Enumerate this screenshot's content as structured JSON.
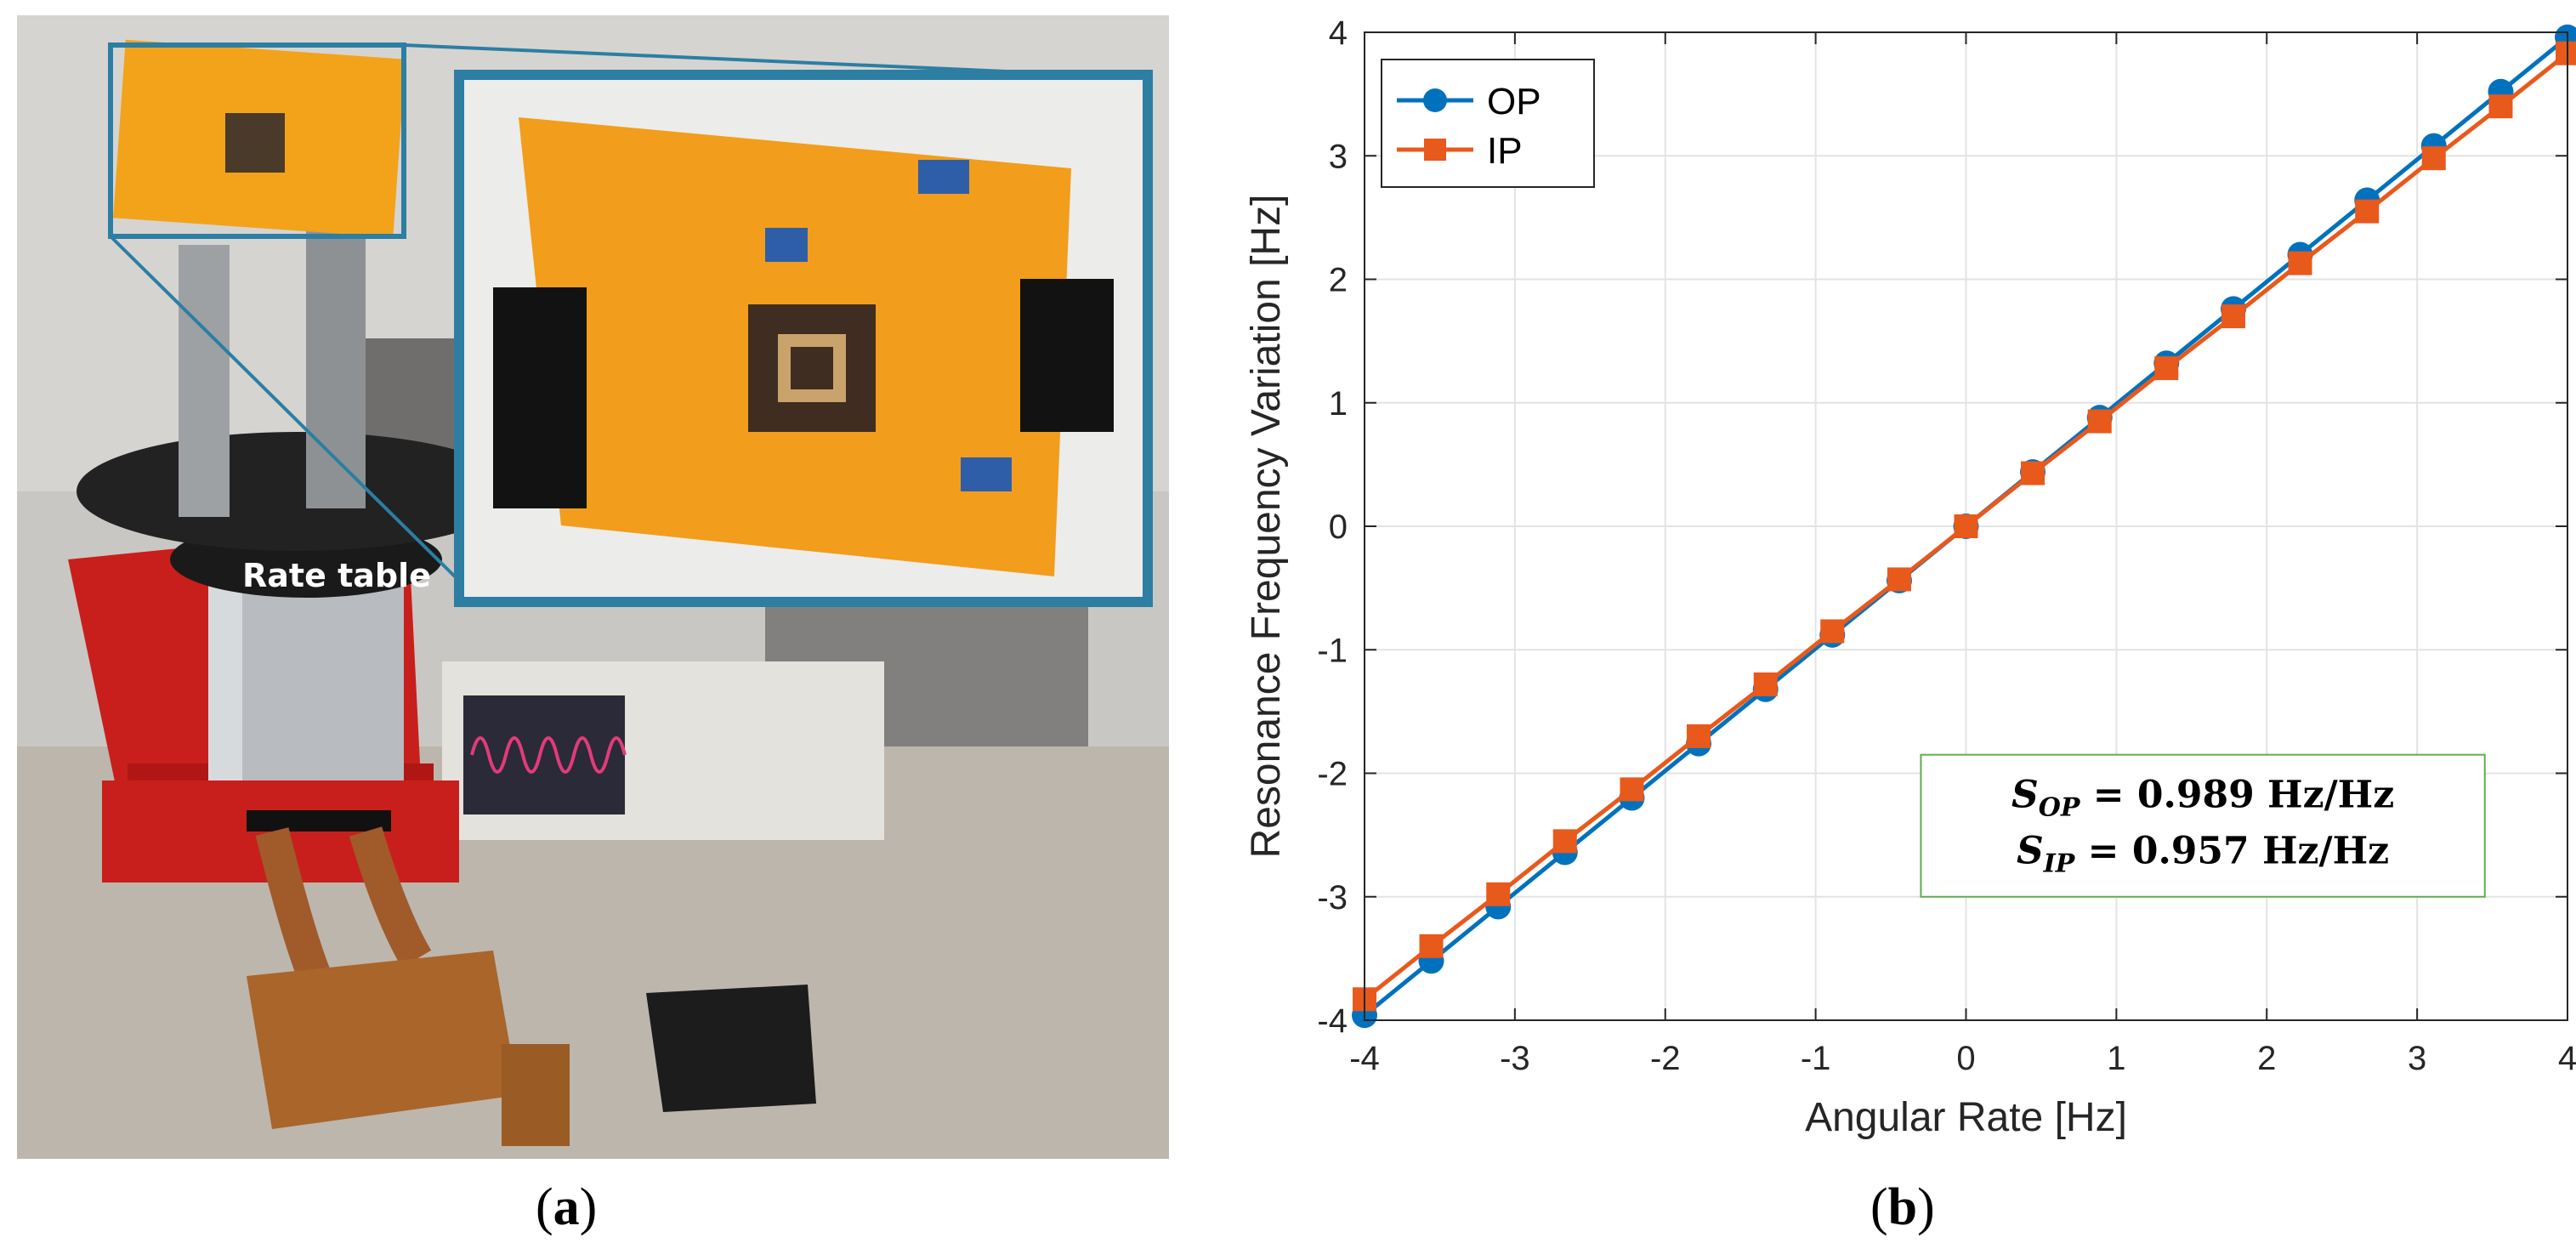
{
  "panel_a": {
    "caption_letter": "a",
    "photo_label": "Rate table"
  },
  "panel_b": {
    "caption_letter": "b",
    "annotation": {
      "line1": {
        "symbol": "S",
        "sub": "OP",
        "text": " = 0.989 Hz/Hz"
      },
      "line2": {
        "symbol": "S",
        "sub": "IP",
        "text": " = 0.957 Hz/Hz"
      },
      "border_color": "#5fae4e"
    }
  },
  "chart_data": {
    "type": "line",
    "xlabel": "Angular Rate [Hz]",
    "ylabel": "Resonance Frequency Variation [Hz]",
    "xlim": [
      -4,
      4
    ],
    "ylim": [
      -4,
      4
    ],
    "xticks": [
      -4,
      -3,
      -2,
      -1,
      0,
      1,
      2,
      3,
      4
    ],
    "yticks": [
      -4,
      -3,
      -2,
      -1,
      0,
      1,
      2,
      3,
      4
    ],
    "grid": true,
    "legend_position": "top-left",
    "x": [
      -4,
      -3.556,
      -3.111,
      -2.667,
      -2.222,
      -1.778,
      -1.333,
      -0.889,
      -0.444,
      0,
      0.444,
      0.889,
      1.333,
      1.778,
      2.222,
      2.667,
      3.111,
      3.556,
      4
    ],
    "series": [
      {
        "name": "OP",
        "marker": "circle",
        "color": "#0072bd",
        "values": [
          -3.96,
          -3.52,
          -3.08,
          -2.64,
          -2.2,
          -1.76,
          -1.32,
          -0.88,
          -0.44,
          0,
          0.44,
          0.88,
          1.32,
          1.76,
          2.2,
          2.64,
          3.08,
          3.52,
          3.96
        ]
      },
      {
        "name": "IP",
        "marker": "square",
        "color": "#e8591c",
        "values": [
          -3.83,
          -3.4,
          -2.98,
          -2.55,
          -2.13,
          -1.7,
          -1.28,
          -0.85,
          -0.43,
          0,
          0.43,
          0.85,
          1.28,
          1.7,
          2.13,
          2.55,
          2.98,
          3.4,
          3.83
        ]
      }
    ]
  }
}
